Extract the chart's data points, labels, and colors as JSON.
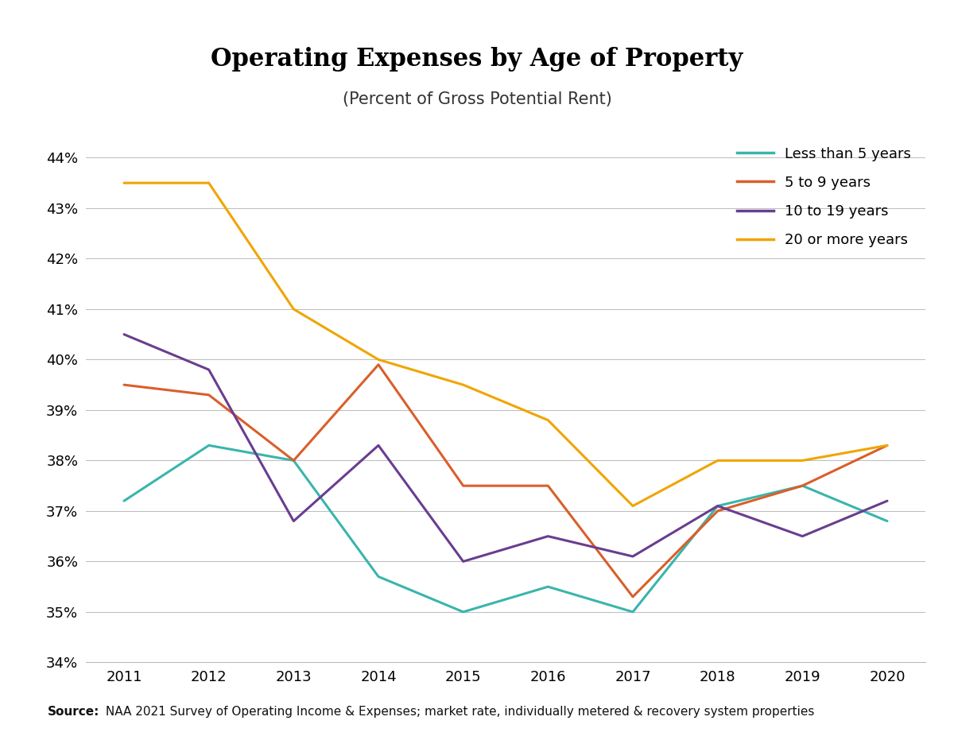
{
  "title": "Operating Expenses by Age of Property",
  "subtitle": "(Percent of Gross Potential Rent)",
  "source_bold": "Source:",
  "source_rest": " NAA 2021 Survey of Operating Income & Expenses; market rate, individually metered & recovery system properties",
  "years": [
    2011,
    2012,
    2013,
    2014,
    2015,
    2016,
    2017,
    2018,
    2019,
    2020
  ],
  "series": {
    "Less than 5 years": {
      "values": [
        37.2,
        38.3,
        38.0,
        35.7,
        35.0,
        35.5,
        35.0,
        37.1,
        37.5,
        36.8
      ],
      "color": "#3ab5ac"
    },
    "5 to 9 years": {
      "values": [
        39.5,
        39.3,
        38.0,
        39.9,
        37.5,
        37.5,
        35.3,
        37.0,
        37.5,
        38.3
      ],
      "color": "#d95f2b"
    },
    "10 to 19 years": {
      "values": [
        40.5,
        39.8,
        36.8,
        38.3,
        36.0,
        36.5,
        36.1,
        37.1,
        36.5,
        37.2
      ],
      "color": "#6a3d8f"
    },
    "20 or more years": {
      "values": [
        43.5,
        43.5,
        41.0,
        40.0,
        39.5,
        38.8,
        37.1,
        38.0,
        38.0,
        38.3
      ],
      "color": "#f0a500"
    }
  },
  "ylim": [
    34.0,
    44.5
  ],
  "yticks": [
    34,
    35,
    36,
    37,
    38,
    39,
    40,
    41,
    42,
    43,
    44
  ],
  "background_color": "#ffffff",
  "title_fontsize": 22,
  "subtitle_fontsize": 15,
  "legend_fontsize": 13,
  "tick_fontsize": 13,
  "source_fontsize": 11,
  "linewidth": 2.2
}
